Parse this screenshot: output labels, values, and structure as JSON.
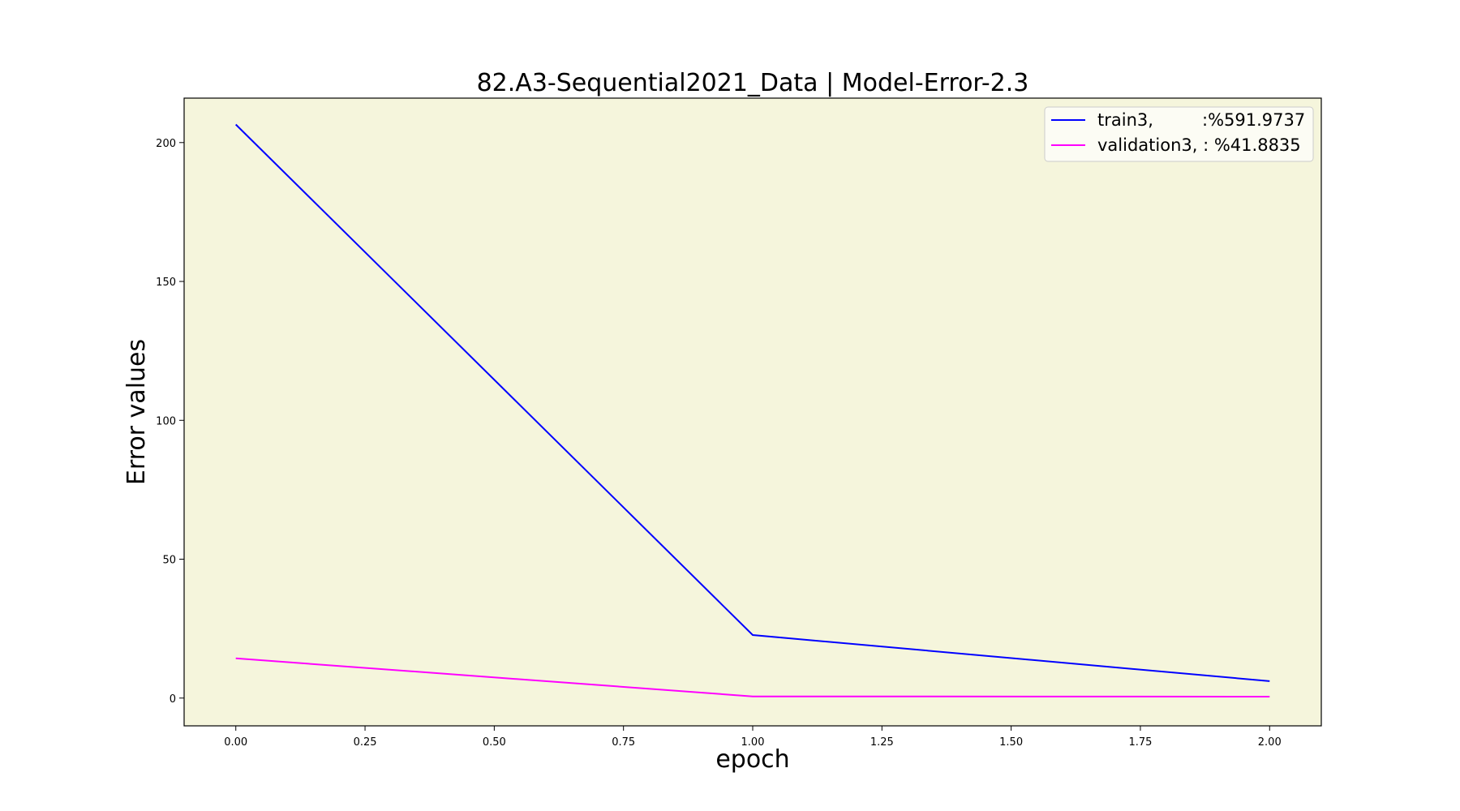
{
  "chart_data": {
    "type": "line",
    "title": "82.A3-Sequential2021_Data | Model-Error-2.3",
    "xlabel": "epoch",
    "ylabel": "Error values",
    "xlim": [
      -0.1,
      2.1
    ],
    "ylim": [
      -10,
      216
    ],
    "xticks": [
      0.0,
      0.25,
      0.5,
      0.75,
      1.0,
      1.25,
      1.5,
      1.75,
      2.0
    ],
    "xtick_labels": [
      "0.00",
      "0.25",
      "0.50",
      "0.75",
      "1.00",
      "1.25",
      "1.50",
      "1.75",
      "2.00"
    ],
    "yticks": [
      0,
      50,
      100,
      150,
      200
    ],
    "ytick_labels": [
      "0",
      "50",
      "100",
      "150",
      "200"
    ],
    "grid": false,
    "background": "#f5f5dc",
    "legend_position": "top-right",
    "series": [
      {
        "name": "train3,         :%591.9737",
        "color": "#0000ff",
        "x": [
          0,
          1,
          2
        ],
        "y": [
          206.5,
          22.7,
          6.1
        ]
      },
      {
        "name": "validation3, : %41.8835",
        "color": "#ff00ff",
        "x": [
          0,
          1,
          2
        ],
        "y": [
          14.3,
          0.6,
          0.5
        ]
      }
    ]
  }
}
